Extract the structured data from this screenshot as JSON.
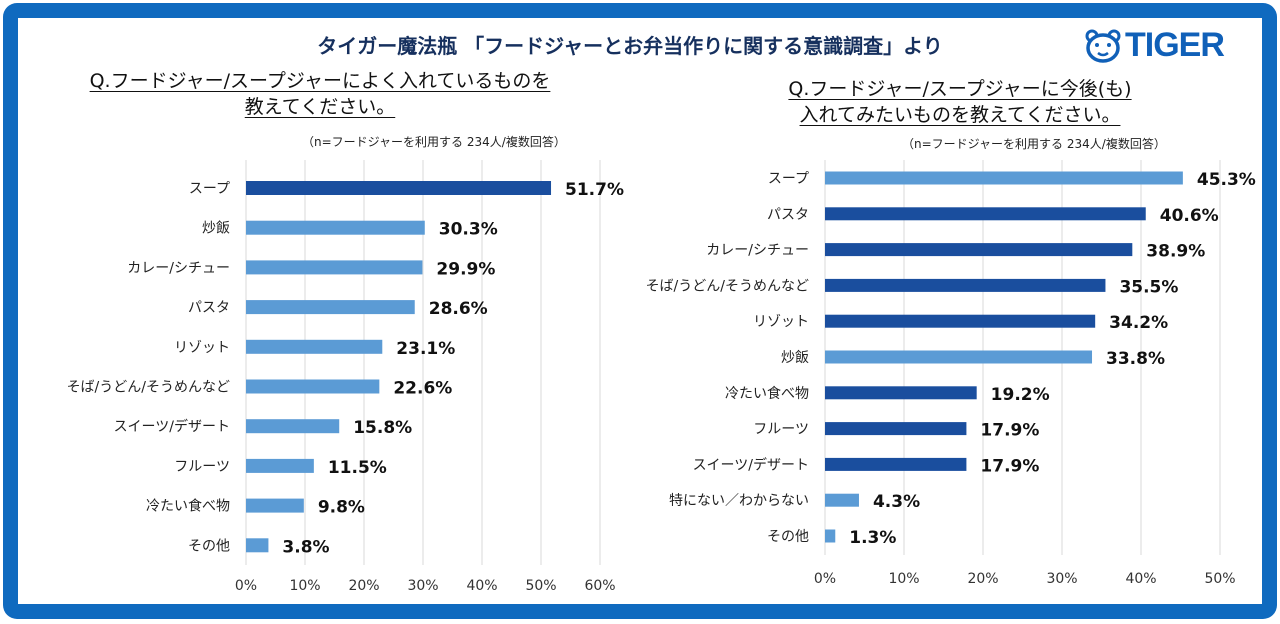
{
  "header": {
    "title": "タイガー魔法瓶 「フードジャーとお弁当作りに関する意識調査」より",
    "logo_text": "TIGER",
    "logo_icon": "tiger-face-icon"
  },
  "colors": {
    "frame": "#0f6abf",
    "dark_bar": "#1a4e9e",
    "light_bar": "#5b9bd5",
    "grid": "#d9d9d9"
  },
  "chart_data": [
    {
      "type": "bar",
      "orientation": "horizontal",
      "question_line1": "Q.フードジャー/スープジャーによく入れているものを",
      "question_line2": "教えてください。",
      "note": "（n=フードジャーを利用する 234人/複数回答）",
      "categories": [
        "スープ",
        "炒飯",
        "カレー/シチュー",
        "パスタ",
        "リゾット",
        "そば/うどん/そうめんなど",
        "スイーツ/デザート",
        "フルーツ",
        "冷たい食べ物",
        "その他"
      ],
      "values": [
        51.7,
        30.3,
        29.9,
        28.6,
        23.1,
        22.6,
        15.8,
        11.5,
        9.8,
        3.8
      ],
      "labels": [
        "51.7%",
        "30.3%",
        "29.9%",
        "28.6%",
        "23.1%",
        "22.6%",
        "15.8%",
        "11.5%",
        "9.8%",
        "3.8%"
      ],
      "highlight": [
        true,
        false,
        false,
        false,
        false,
        false,
        false,
        false,
        false,
        false
      ],
      "xlim": [
        0,
        60
      ],
      "ticks": [
        "0%",
        "10%",
        "20%",
        "30%",
        "40%",
        "50%",
        "60%"
      ],
      "grid": true
    },
    {
      "type": "bar",
      "orientation": "horizontal",
      "question_line1": "Q.フードジャー/スープジャーに今後(も)",
      "question_line2": "入れてみたいものを教えてください。",
      "note": "（n=フードジャーを利用する 234人/複数回答）",
      "categories": [
        "スープ",
        "パスタ",
        "カレー/シチュー",
        "そば/うどん/そうめんなど",
        "リゾット",
        "炒飯",
        "冷たい食べ物",
        "フルーツ",
        "スイーツ/デザート",
        "特にない／わからない",
        "その他"
      ],
      "values": [
        45.3,
        40.6,
        38.9,
        35.5,
        34.2,
        33.8,
        19.2,
        17.9,
        17.9,
        4.3,
        1.3
      ],
      "labels": [
        "45.3%",
        "40.6%",
        "38.9%",
        "35.5%",
        "34.2%",
        "33.8%",
        "19.2%",
        "17.9%",
        "17.9%",
        "4.3%",
        "1.3%"
      ],
      "highlight": [
        false,
        true,
        true,
        true,
        true,
        false,
        true,
        true,
        true,
        false,
        false
      ],
      "xlim": [
        0,
        50
      ],
      "ticks": [
        "0%",
        "10%",
        "20%",
        "30%",
        "40%",
        "50%"
      ],
      "grid": true
    }
  ]
}
